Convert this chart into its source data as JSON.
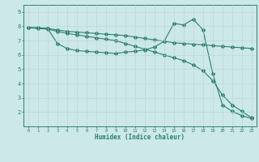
{
  "xlabel": "Humidex (Indice chaleur)",
  "ylabel": "",
  "background_color": "#cce8e8",
  "line_color": "#2d7f6e",
  "xlim": [
    -0.5,
    23.5
  ],
  "ylim": [
    1.0,
    9.5
  ],
  "xticks": [
    0,
    1,
    2,
    3,
    4,
    5,
    6,
    7,
    8,
    9,
    10,
    11,
    12,
    13,
    14,
    15,
    16,
    17,
    18,
    19,
    20,
    21,
    22,
    23
  ],
  "yticks": [
    2,
    3,
    4,
    5,
    6,
    7,
    8,
    9
  ],
  "line1_x": [
    0,
    1,
    2,
    3,
    4,
    5,
    6,
    7,
    8,
    9,
    10,
    11,
    12,
    13,
    14,
    15,
    16,
    17,
    18,
    19,
    20,
    21,
    22,
    23
  ],
  "line1_y": [
    7.9,
    7.9,
    7.85,
    7.75,
    7.65,
    7.6,
    7.55,
    7.5,
    7.45,
    7.4,
    7.35,
    7.25,
    7.15,
    7.05,
    6.95,
    6.85,
    6.8,
    6.75,
    6.7,
    6.65,
    6.6,
    6.55,
    6.5,
    6.45
  ],
  "line2_x": [
    0,
    1,
    2,
    3,
    4,
    5,
    6,
    7,
    8,
    9,
    10,
    11,
    12,
    13,
    14,
    15,
    16,
    17,
    18,
    19,
    20,
    21,
    22,
    23
  ],
  "line2_y": [
    7.9,
    7.9,
    7.85,
    6.8,
    6.45,
    6.3,
    6.25,
    6.2,
    6.15,
    6.1,
    6.2,
    6.25,
    6.35,
    6.55,
    6.95,
    8.2,
    8.1,
    8.5,
    7.75,
    4.7,
    2.5,
    2.05,
    1.75,
    1.55
  ],
  "line3_x": [
    0,
    1,
    2,
    3,
    4,
    5,
    6,
    7,
    8,
    9,
    10,
    11,
    12,
    13,
    14,
    15,
    16,
    17,
    18,
    19,
    20,
    21,
    22,
    23
  ],
  "line3_y": [
    7.9,
    7.85,
    7.8,
    7.65,
    7.5,
    7.4,
    7.3,
    7.2,
    7.1,
    7.0,
    6.8,
    6.6,
    6.4,
    6.2,
    6.0,
    5.8,
    5.6,
    5.3,
    4.9,
    4.2,
    3.2,
    2.5,
    2.05,
    1.6
  ]
}
